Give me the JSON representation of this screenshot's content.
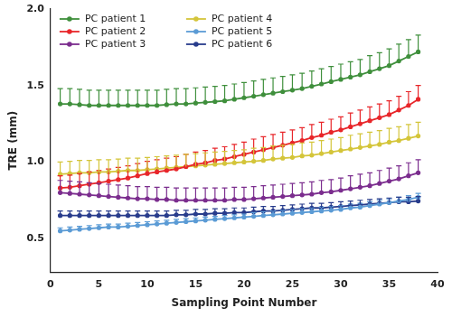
{
  "chart_data": {
    "type": "line",
    "x_label": "Sampling Point Number",
    "y_label": "TRE (mm)",
    "x": [
      1,
      2,
      3,
      4,
      5,
      6,
      7,
      8,
      9,
      10,
      11,
      12,
      13,
      14,
      15,
      16,
      17,
      18,
      19,
      20,
      21,
      22,
      23,
      24,
      25,
      26,
      27,
      28,
      29,
      30,
      31,
      32,
      33,
      34,
      35,
      36,
      37,
      38
    ],
    "xlim": [
      0,
      40
    ],
    "xticks": [
      0,
      5,
      10,
      15,
      20,
      25,
      30,
      35,
      40
    ],
    "ylim": [
      0.28,
      2.0
    ],
    "yticks": [
      {
        "value": 0.5,
        "label": "0.5"
      },
      {
        "value": 1,
        "label": "1.0"
      },
      {
        "value": 1.5,
        "label": "1.5"
      },
      {
        "value": 2,
        "label": "2.0"
      }
    ],
    "grid": false,
    "legend": "upper left",
    "marker": "circle",
    "series": [
      {
        "name": "PC patient 1",
        "color": "#3f8f3c",
        "values": [
          1.38,
          1.38,
          1.375,
          1.37,
          1.37,
          1.37,
          1.37,
          1.37,
          1.37,
          1.37,
          1.37,
          1.375,
          1.38,
          1.38,
          1.385,
          1.39,
          1.395,
          1.4,
          1.41,
          1.42,
          1.43,
          1.44,
          1.45,
          1.46,
          1.47,
          1.48,
          1.495,
          1.51,
          1.525,
          1.54,
          1.555,
          1.57,
          1.59,
          1.61,
          1.63,
          1.66,
          1.69,
          1.72
        ],
        "errors": [
          0.1,
          0.1,
          0.1,
          0.1,
          0.1,
          0.1,
          0.1,
          0.1,
          0.1,
          0.1,
          0.1,
          0.1,
          0.1,
          0.1,
          0.1,
          0.1,
          0.1,
          0.1,
          0.1,
          0.1,
          0.1,
          0.1,
          0.1,
          0.1,
          0.1,
          0.1,
          0.1,
          0.1,
          0.1,
          0.1,
          0.1,
          0.1,
          0.105,
          0.105,
          0.11,
          0.11,
          0.11,
          0.11
        ]
      },
      {
        "name": "PC patient 2",
        "color": "#e8262a",
        "values": [
          0.83,
          0.835,
          0.845,
          0.855,
          0.865,
          0.875,
          0.885,
          0.895,
          0.91,
          0.925,
          0.935,
          0.945,
          0.955,
          0.97,
          0.985,
          0.995,
          1.01,
          1.02,
          1.035,
          1.05,
          1.065,
          1.08,
          1.095,
          1.11,
          1.125,
          1.14,
          1.16,
          1.175,
          1.195,
          1.21,
          1.23,
          1.25,
          1.27,
          1.29,
          1.31,
          1.34,
          1.37,
          1.41
        ],
        "errors": [
          0.08,
          0.08,
          0.08,
          0.08,
          0.08,
          0.08,
          0.08,
          0.08,
          0.08,
          0.08,
          0.08,
          0.08,
          0.08,
          0.08,
          0.08,
          0.08,
          0.08,
          0.08,
          0.08,
          0.08,
          0.085,
          0.085,
          0.085,
          0.085,
          0.085,
          0.085,
          0.085,
          0.085,
          0.085,
          0.085,
          0.09,
          0.09,
          0.09,
          0.09,
          0.09,
          0.09,
          0.09,
          0.09
        ]
      },
      {
        "name": "PC patient 3",
        "color": "#7b2d8e",
        "values": [
          0.8,
          0.795,
          0.79,
          0.785,
          0.78,
          0.775,
          0.77,
          0.765,
          0.76,
          0.76,
          0.755,
          0.755,
          0.75,
          0.75,
          0.75,
          0.75,
          0.75,
          0.75,
          0.755,
          0.755,
          0.76,
          0.765,
          0.77,
          0.775,
          0.78,
          0.785,
          0.79,
          0.8,
          0.805,
          0.815,
          0.825,
          0.835,
          0.845,
          0.86,
          0.875,
          0.89,
          0.91,
          0.93
        ],
        "errors": [
          0.08,
          0.08,
          0.08,
          0.08,
          0.08,
          0.08,
          0.08,
          0.08,
          0.08,
          0.08,
          0.08,
          0.08,
          0.08,
          0.08,
          0.08,
          0.08,
          0.08,
          0.08,
          0.08,
          0.08,
          0.08,
          0.08,
          0.08,
          0.08,
          0.08,
          0.08,
          0.08,
          0.08,
          0.08,
          0.08,
          0.085,
          0.085,
          0.085,
          0.085,
          0.085,
          0.085,
          0.085,
          0.085
        ]
      },
      {
        "name": "PC patient 4",
        "color": "#d4c53a",
        "values": [
          0.92,
          0.925,
          0.93,
          0.93,
          0.935,
          0.935,
          0.94,
          0.945,
          0.945,
          0.95,
          0.955,
          0.96,
          0.965,
          0.97,
          0.975,
          0.98,
          0.985,
          0.99,
          0.995,
          1.0,
          1.005,
          1.01,
          1.02,
          1.025,
          1.03,
          1.04,
          1.045,
          1.055,
          1.065,
          1.075,
          1.085,
          1.095,
          1.105,
          1.115,
          1.13,
          1.14,
          1.155,
          1.17
        ],
        "errors": [
          0.08,
          0.08,
          0.08,
          0.08,
          0.08,
          0.08,
          0.08,
          0.08,
          0.08,
          0.08,
          0.08,
          0.08,
          0.08,
          0.08,
          0.08,
          0.08,
          0.08,
          0.08,
          0.08,
          0.08,
          0.085,
          0.085,
          0.085,
          0.085,
          0.085,
          0.085,
          0.085,
          0.085,
          0.085,
          0.085,
          0.09,
          0.09,
          0.09,
          0.09,
          0.09,
          0.09,
          0.09,
          0.09
        ]
      },
      {
        "name": "PC patient 5",
        "color": "#5b9bd5",
        "values": [
          0.55,
          0.555,
          0.56,
          0.565,
          0.57,
          0.575,
          0.575,
          0.58,
          0.585,
          0.59,
          0.595,
          0.6,
          0.605,
          0.61,
          0.615,
          0.62,
          0.625,
          0.63,
          0.635,
          0.64,
          0.645,
          0.65,
          0.655,
          0.66,
          0.665,
          0.67,
          0.675,
          0.68,
          0.685,
          0.69,
          0.7,
          0.705,
          0.715,
          0.725,
          0.735,
          0.745,
          0.755,
          0.77
        ],
        "errors": [
          0.02,
          0.02,
          0.02,
          0.02,
          0.02,
          0.02,
          0.02,
          0.02,
          0.02,
          0.02,
          0.02,
          0.02,
          0.02,
          0.02,
          0.02,
          0.02,
          0.02,
          0.02,
          0.02,
          0.02,
          0.025,
          0.025,
          0.025,
          0.025,
          0.025,
          0.025,
          0.025,
          0.025,
          0.025,
          0.025,
          0.025,
          0.025,
          0.025,
          0.025,
          0.025,
          0.025,
          0.025,
          0.025
        ]
      },
      {
        "name": "PC patient 6",
        "color": "#283c8c",
        "values": [
          0.65,
          0.65,
          0.65,
          0.65,
          0.65,
          0.65,
          0.65,
          0.65,
          0.65,
          0.65,
          0.65,
          0.65,
          0.655,
          0.655,
          0.66,
          0.66,
          0.665,
          0.665,
          0.67,
          0.67,
          0.675,
          0.68,
          0.68,
          0.685,
          0.69,
          0.695,
          0.7,
          0.7,
          0.705,
          0.71,
          0.715,
          0.72,
          0.725,
          0.73,
          0.735,
          0.74,
          0.74,
          0.745
        ],
        "errors": [
          0.03,
          0.03,
          0.03,
          0.03,
          0.03,
          0.03,
          0.03,
          0.03,
          0.03,
          0.03,
          0.03,
          0.03,
          0.03,
          0.03,
          0.03,
          0.03,
          0.03,
          0.03,
          0.03,
          0.03,
          0.03,
          0.03,
          0.03,
          0.03,
          0.03,
          0.03,
          0.03,
          0.03,
          0.03,
          0.03,
          0.03,
          0.03,
          0.03,
          0.03,
          0.03,
          0.03,
          0.03,
          0.03
        ]
      }
    ]
  }
}
